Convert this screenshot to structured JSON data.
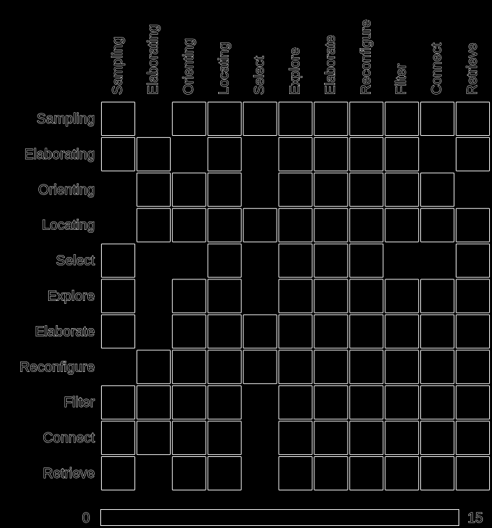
{
  "chart_data": {
    "type": "heatmap",
    "columns": [
      "Sampling",
      "Elaborating",
      "Orienting",
      "Locating",
      "Select",
      "Explore",
      "Elaborate",
      "Reconfigure",
      "Filter",
      "Connect",
      "Retrieve"
    ],
    "rows": [
      "Sampling",
      "Elaborating",
      "Orienting",
      "Locating",
      "Select",
      "Explore",
      "Elaborate",
      "Reconfigure",
      "Filter",
      "Connect",
      "Retrieve"
    ],
    "cells": [
      [
        1,
        0,
        1,
        1,
        1,
        1,
        1,
        1,
        1,
        1,
        1
      ],
      [
        1,
        1,
        0,
        1,
        0,
        1,
        1,
        1,
        1,
        0,
        1
      ],
      [
        0,
        1,
        1,
        1,
        0,
        1,
        1,
        1,
        1,
        1,
        0
      ],
      [
        0,
        1,
        1,
        1,
        1,
        1,
        1,
        1,
        1,
        1,
        1
      ],
      [
        1,
        0,
        0,
        1,
        0,
        1,
        1,
        1,
        0,
        0,
        1
      ],
      [
        1,
        0,
        1,
        1,
        0,
        1,
        1,
        1,
        1,
        1,
        1
      ],
      [
        1,
        0,
        1,
        1,
        1,
        1,
        1,
        1,
        1,
        1,
        1
      ],
      [
        0,
        1,
        1,
        1,
        1,
        1,
        1,
        1,
        1,
        1,
        1
      ],
      [
        1,
        1,
        1,
        1,
        0,
        1,
        1,
        1,
        1,
        1,
        1
      ],
      [
        1,
        1,
        1,
        1,
        0,
        1,
        1,
        1,
        1,
        1,
        1
      ],
      [
        1,
        0,
        1,
        1,
        0,
        1,
        1,
        1,
        1,
        1,
        1
      ]
    ],
    "colorbar": {
      "min_label": "0",
      "max_label": "15"
    }
  },
  "colors": {
    "background": "#000000",
    "outline": "#ffffff",
    "cell_fill": "#000000"
  }
}
